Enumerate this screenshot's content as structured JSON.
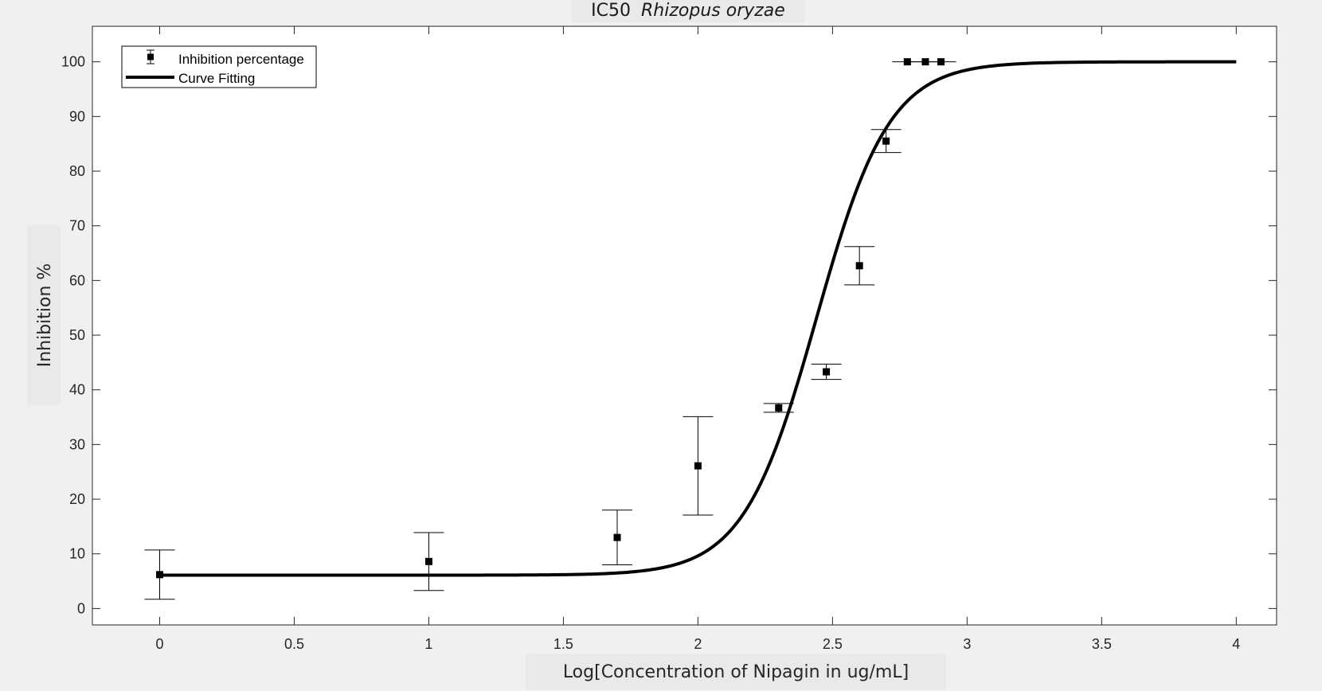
{
  "chart_data": {
    "type": "scatter",
    "title_main": "IC50",
    "title_italic": "Rhizopus oryzae",
    "xlabel": "Log[Concentration of Nipagin in ug/mL]",
    "ylabel": "Inhibition %",
    "xlim": [
      -0.25,
      4.15
    ],
    "ylim": [
      -3,
      106.5
    ],
    "x_ticks": [
      0,
      0.5,
      1,
      1.5,
      2,
      2.5,
      3,
      3.5,
      4
    ],
    "x_tick_labels": [
      "0",
      "0.5",
      "1",
      "1.5",
      "2",
      "2.5",
      "3",
      "3.5",
      "4"
    ],
    "y_ticks": [
      0,
      10,
      20,
      30,
      40,
      50,
      60,
      70,
      80,
      90,
      100
    ],
    "y_tick_labels": [
      "0",
      "10",
      "20",
      "30",
      "40",
      "50",
      "60",
      "70",
      "80",
      "90",
      "100"
    ],
    "grid": false,
    "legend_position": "top-left",
    "series": [
      {
        "name": "Inhibition percentage",
        "kind": "scatter-errorbar",
        "points": [
          {
            "x": 0,
            "y": 6.2,
            "err": 4.5
          },
          {
            "x": 1,
            "y": 8.6,
            "err": 5.3
          },
          {
            "x": 1.7,
            "y": 13,
            "err": 5
          },
          {
            "x": 2,
            "y": 26.1,
            "err": 9
          },
          {
            "x": 2.3,
            "y": 36.7,
            "err": 0.8
          },
          {
            "x": 2.477,
            "y": 43.3,
            "err": 1.4
          },
          {
            "x": 2.6,
            "y": 62.7,
            "err": 3.5
          },
          {
            "x": 2.699,
            "y": 85.5,
            "err": 2.1
          },
          {
            "x": 2.778,
            "y": 100,
            "err": 0
          },
          {
            "x": 2.845,
            "y": 100,
            "err": 0
          },
          {
            "x": 2.903,
            "y": 100,
            "err": 0
          }
        ]
      },
      {
        "name": "Curve Fitting",
        "kind": "line",
        "fit": {
          "bottom": 6.1,
          "top": 100,
          "logIC50": 2.44,
          "hill_slope": 3.2,
          "x_range": [
            0,
            4
          ]
        }
      }
    ],
    "colors": {
      "marker": "#000000",
      "curve": "#000000",
      "plot_bg": "#ffffff",
      "figure_bg": "#f0f0f0"
    }
  }
}
